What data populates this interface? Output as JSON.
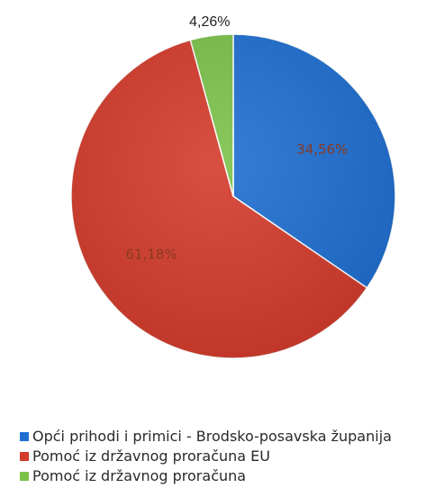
{
  "chart_data": {
    "type": "pie",
    "slices": [
      {
        "label": "Opći prihodi i primici - Brodsko-posavska županija",
        "value": 34.56,
        "display": "34,56%",
        "color": "#1f6fd1"
      },
      {
        "label": "Pomoć iz državnog proračuna EU",
        "value": 61.18,
        "display": "61,18%",
        "color": "#d43c2c"
      },
      {
        "label": "Pomoć iz državnog proračuna",
        "value": 4.26,
        "display": "4,26%",
        "color": "#7cc24a"
      }
    ],
    "start_angle": "12 o'clock",
    "direction": "clockwise",
    "legend_position": "bottom-left",
    "label_colors": {
      "inner": "#8a3a22",
      "outer": "#222222"
    }
  }
}
